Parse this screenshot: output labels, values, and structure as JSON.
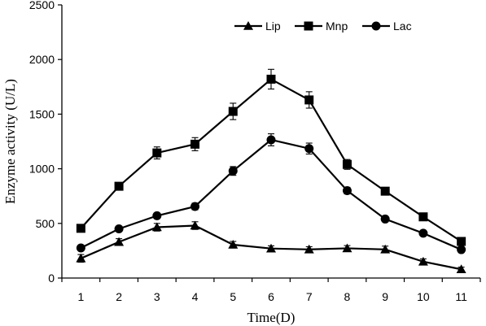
{
  "chart_data": {
    "type": "line",
    "title": "",
    "xlabel": "Time(D)",
    "ylabel": "Enzyme activity (U/L)",
    "ylim": [
      0,
      2500
    ],
    "yticks": [
      "0",
      "500",
      "1000",
      "1500",
      "2000",
      "2500"
    ],
    "categories": [
      "1",
      "2",
      "3",
      "4",
      "5",
      "6",
      "7",
      "8",
      "9",
      "10",
      "11"
    ],
    "grid": false,
    "legend_position": "top-right",
    "series": [
      {
        "name": "Lip",
        "marker": "triangle",
        "color": "#000000",
        "values": [
          180,
          330,
          465,
          480,
          305,
          270,
          262,
          272,
          262,
          150,
          80
        ],
        "errors": [
          35,
          30,
          35,
          35,
          30,
          25,
          25,
          25,
          30,
          25,
          20
        ]
      },
      {
        "name": "Mnp",
        "marker": "square",
        "color": "#000000",
        "values": [
          455,
          840,
          1145,
          1225,
          1525,
          1820,
          1630,
          1040,
          795,
          560,
          335
        ],
        "errors": [
          25,
          25,
          55,
          60,
          75,
          90,
          75,
          45,
          20,
          20,
          20
        ]
      },
      {
        "name": "Lac",
        "marker": "circle",
        "color": "#000000",
        "values": [
          275,
          450,
          570,
          655,
          980,
          1265,
          1185,
          800,
          540,
          410,
          260
        ],
        "errors": [
          20,
          20,
          25,
          30,
          40,
          55,
          50,
          30,
          20,
          20,
          20
        ]
      }
    ]
  }
}
